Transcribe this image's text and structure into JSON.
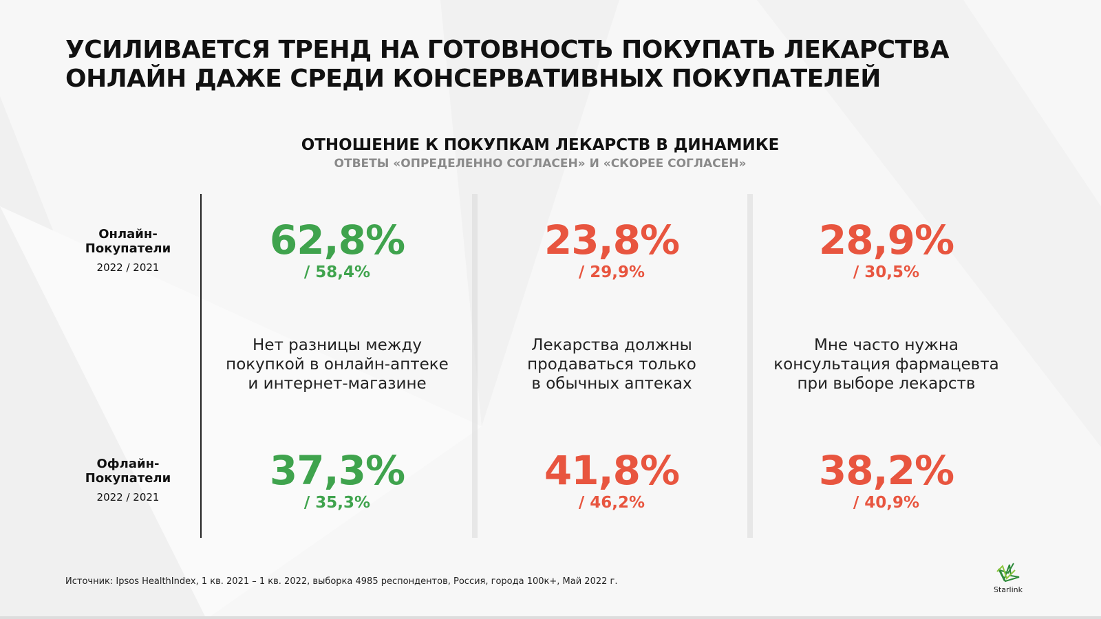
{
  "title_lines": [
    "УСИЛИВАЕТСЯ ТРЕНД НА ГОТОВНОСТЬ ПОКУПАТЬ ЛЕКАРСТВА",
    "ОНЛАЙН ДАЖЕ СРЕДИ КОНСЕРВАТИВНЫХ ПОКУПАТЕЛЕЙ"
  ],
  "subtitle": "ОТНОШЕНИЕ К ПОКУПКАМ ЛЕКАРСТВ В ДИНАМИКЕ",
  "subtitle2": "ОТВЕТЫ «ОПРЕДЕЛЕННО СОГЛАСЕН» И «СКОРЕЕ СОГЛАСЕН»",
  "colors": {
    "green": "#3fa34d",
    "red": "#e8553f"
  },
  "rows": [
    {
      "label1": "Онлайн-",
      "label2": "Покупатели",
      "years": "2022 / 2021"
    },
    {
      "label1": "Офлайн-",
      "label2": "Покупатели",
      "years": "2022 / 2021"
    }
  ],
  "columns": [
    {
      "desc": [
        "Нет разницы между",
        "покупкой в онлайн-аптеке",
        "и интернет-магазине"
      ],
      "color": "green",
      "online": {
        "v2022": "62,8%",
        "v2021": "/ 58,4%"
      },
      "offline": {
        "v2022": "37,3%",
        "v2021": "/ 35,3%"
      }
    },
    {
      "desc": [
        "Лекарства должны",
        "продаваться только",
        "в обычных аптеках"
      ],
      "color": "red",
      "online": {
        "v2022": "23,8%",
        "v2021": "/ 29,9%"
      },
      "offline": {
        "v2022": "41,8%",
        "v2021": "/ 46,2%"
      }
    },
    {
      "desc": [
        "Мне часто нужна",
        "консультация фармацевта",
        "при выборе лекарств"
      ],
      "color": "red",
      "online": {
        "v2022": "28,9%",
        "v2021": "/ 30,5%"
      },
      "offline": {
        "v2022": "38,2%",
        "v2021": "/ 40,9%"
      }
    }
  ],
  "source": "Источник: Ipsos HealthIndex, 1 кв. 2021 – 1 кв. 2022, выборка 4985 респондентов, Россия, города 100к+, Май 2022 г.",
  "logo": "Starlink"
}
